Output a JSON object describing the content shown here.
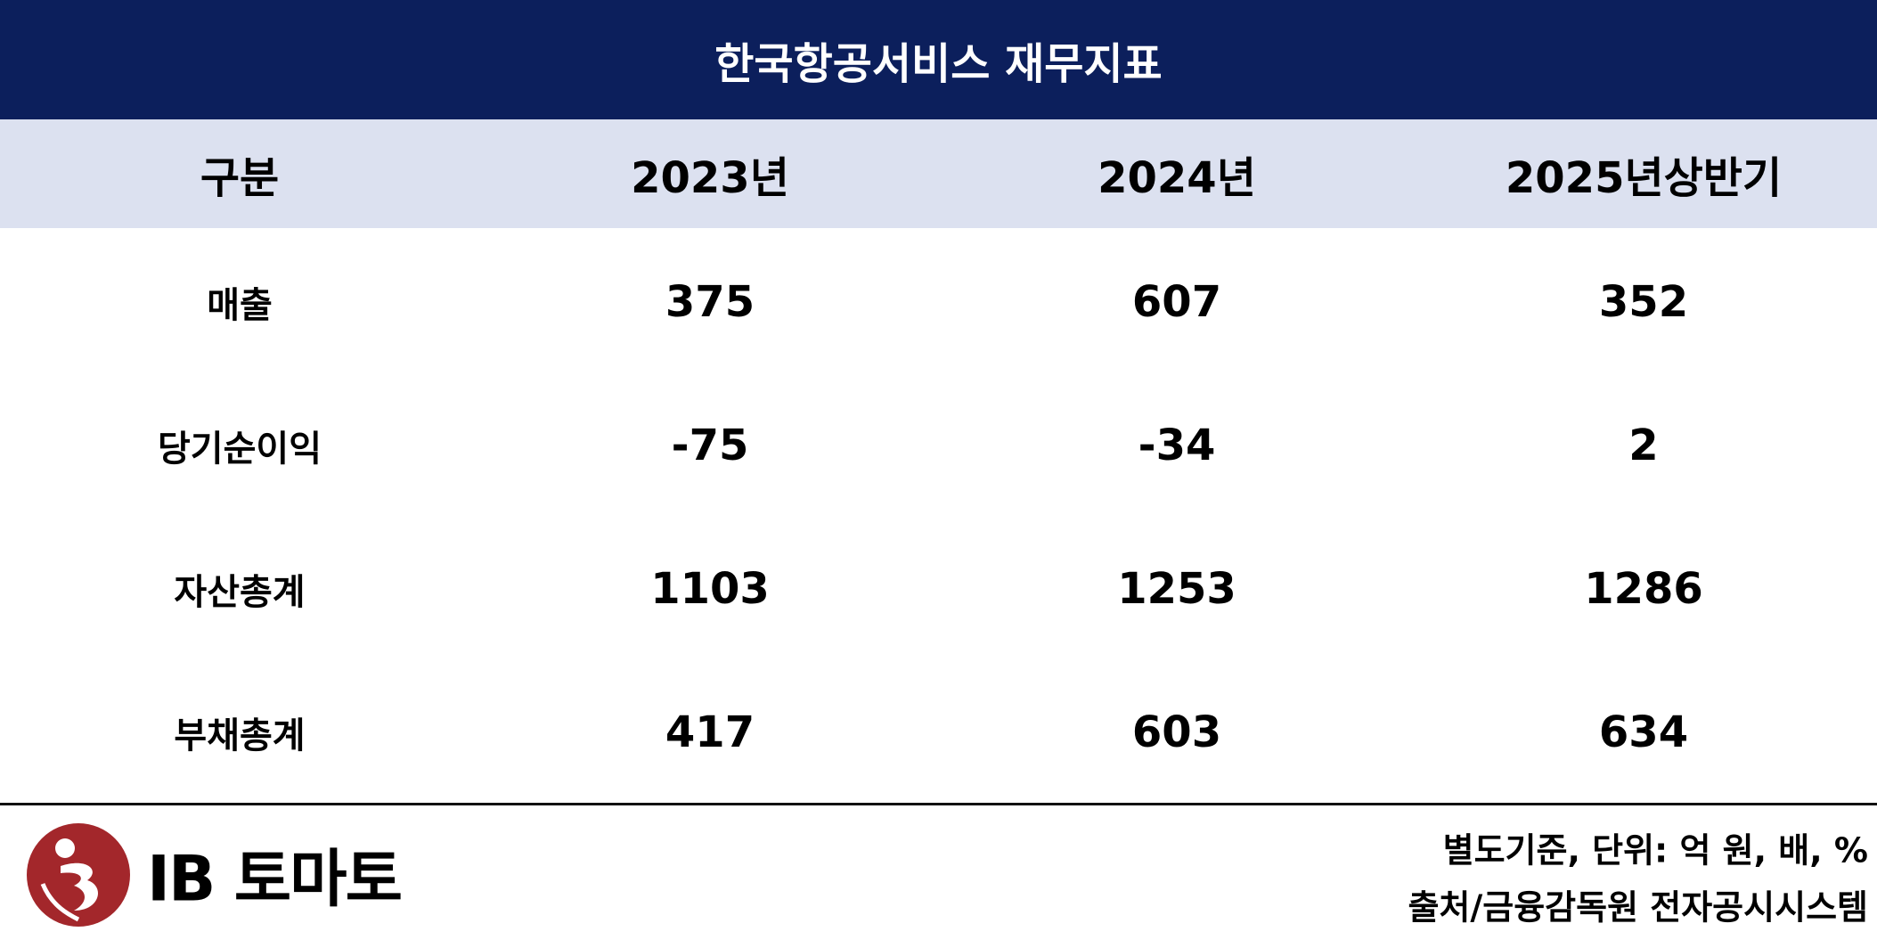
{
  "title": "한국항공서비스 재무지표",
  "table": {
    "header": [
      "구분",
      "2023년",
      "2024년",
      "2025년상반기"
    ],
    "rows": [
      [
        "매출",
        375,
        607,
        352
      ],
      [
        "당기순이익",
        -75,
        -34,
        2
      ],
      [
        "자산총계",
        1103,
        1253,
        1286
      ],
      [
        "부채총계",
        417,
        603,
        634
      ]
    ]
  },
  "logo": "IB 토마토",
  "notes": [
    "별도기준, 단위: 억 원, 배, %",
    "출처/금융감독원 전자공시시스템"
  ]
}
